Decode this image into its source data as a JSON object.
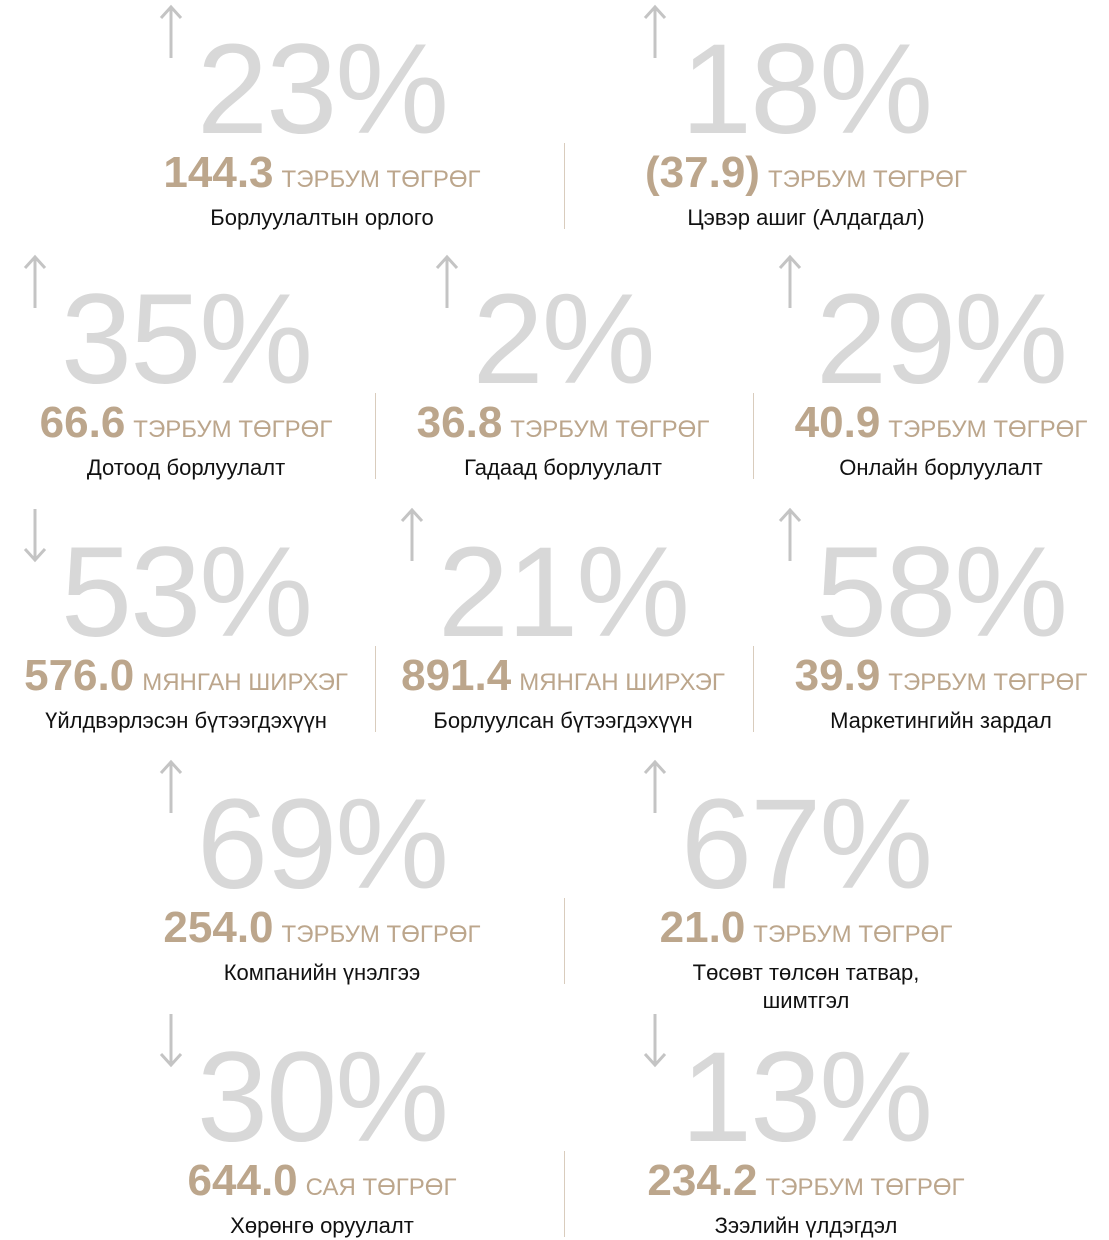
{
  "rows": [
    {
      "items": [
        {
          "direction": "up",
          "percent": "23%",
          "value": "144.3",
          "unit": "ТЭРБУМ ТӨГРӨГ",
          "label": "Борлуулалтын орлого"
        },
        {
          "direction": "up",
          "percent": "18%",
          "value": "(37.9)",
          "unit": "ТЭРБУМ ТӨГРӨГ",
          "label": "Цэвэр ашиг (Алдагдал)"
        }
      ]
    },
    {
      "items": [
        {
          "direction": "up",
          "percent": "35%",
          "value": "66.6",
          "unit": "ТЭРБУМ ТӨГРӨГ",
          "label": "Дотоод борлуулалт"
        },
        {
          "direction": "up",
          "percent": "2%",
          "value": "36.8",
          "unit": "ТЭРБУМ ТӨГРӨГ",
          "label": "Гадаад борлуулалт"
        },
        {
          "direction": "up",
          "percent": "29%",
          "value": "40.9",
          "unit": "ТЭРБУМ ТӨГРӨГ",
          "label": "Онлайн борлуулалт"
        }
      ]
    },
    {
      "items": [
        {
          "direction": "down",
          "percent": "53%",
          "value": "576.0",
          "unit": "МЯНГАН ШИРХЭГ",
          "label": "Үйлдвэрлэсэн бүтээгдэхүүн"
        },
        {
          "direction": "up",
          "percent": "21%",
          "value": "891.4",
          "unit": "МЯНГАН ШИРХЭГ",
          "label": "Борлуулсан бүтээгдэхүүн"
        },
        {
          "direction": "up",
          "percent": "58%",
          "value": "39.9",
          "unit": "ТЭРБУМ ТӨГРӨГ",
          "label": "Маркетингийн зардал"
        }
      ]
    },
    {
      "items": [
        {
          "direction": "up",
          "percent": "69%",
          "value": "254.0",
          "unit": "ТЭРБУМ ТӨГРӨГ",
          "label": "Компанийн үнэлгээ"
        },
        {
          "direction": "up",
          "percent": "67%",
          "value": "21.0",
          "unit": "ТЭРБУМ ТӨГРӨГ",
          "label": "Төсөвт төлсөн татвар, шимтгэл"
        }
      ]
    },
    {
      "items": [
        {
          "direction": "down",
          "percent": "30%",
          "value": "644.0",
          "unit": "САЯ ТӨГРӨГ",
          "label": "Хөрөнгө оруулалт"
        },
        {
          "direction": "down",
          "percent": "13%",
          "value": "234.2",
          "unit": "ТЭРБУМ ТӨГРӨГ",
          "label": "Зээлийн үлдэгдэл"
        }
      ]
    }
  ]
}
